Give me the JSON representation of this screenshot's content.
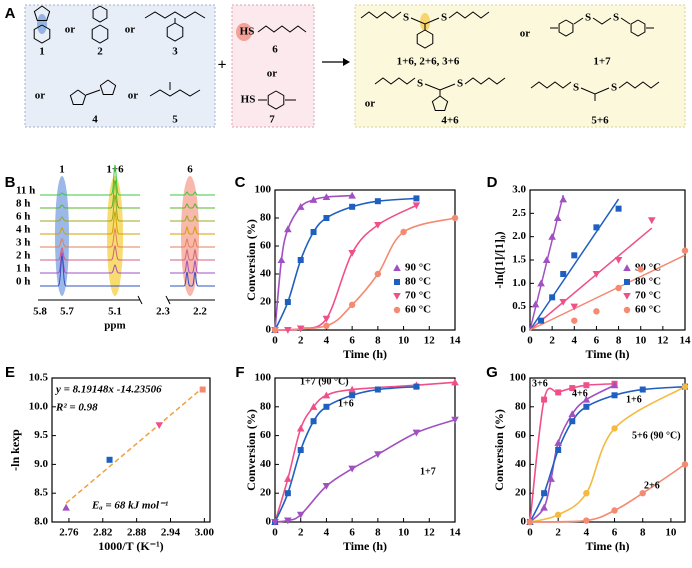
{
  "panel_labels": [
    "A",
    "B",
    "C",
    "D",
    "E",
    "F",
    "G"
  ],
  "scheme": {
    "compounds": [
      "1",
      "2",
      "3",
      "4",
      "5",
      "6",
      "7"
    ],
    "products": [
      "1+6, 2+6, 3+6",
      "1+7",
      "4+6",
      "5+6"
    ],
    "or": "or",
    "plus": "+",
    "thiol_group": "HS",
    "sulfur": "S"
  },
  "nmr": {
    "peak_labels": [
      "1",
      "1+6",
      "6"
    ],
    "time_labels": [
      "11 h",
      "8 h",
      "6 h",
      "4 h",
      "3 h",
      "2 h",
      "1 h",
      "0 h"
    ],
    "colors": [
      "#3cc83c",
      "#5ab428",
      "#9aa81e",
      "#d2a000",
      "#e0805a",
      "#d0607e",
      "#a050c0",
      "#3050c0"
    ],
    "xtick_labels": [
      "5.8",
      "5.7",
      "5.1",
      "2.3",
      "2.2"
    ],
    "xlabel": "ppm"
  },
  "chart_data": [
    {
      "type": "scatter",
      "line": "connect",
      "legend": "lower right",
      "xlabel": "Time (h)",
      "ylabel": "Conversion (%)",
      "xlim": [
        0,
        14
      ],
      "xticks": [
        0,
        2,
        4,
        6,
        8,
        10,
        12,
        14
      ],
      "ylim": [
        0,
        100
      ],
      "yticks": [
        0,
        20,
        40,
        60,
        80,
        100
      ],
      "series": [
        {
          "name": "90 °C",
          "color": "#a050c0",
          "marker": "triangle-up",
          "x": [
            0,
            0.5,
            1,
            2,
            3,
            4,
            6
          ],
          "values": [
            0,
            50,
            72,
            88,
            93,
            95,
            96
          ]
        },
        {
          "name": "80 °C",
          "color": "#1f5fbf",
          "marker": "square",
          "x": [
            0,
            1,
            2,
            3,
            4,
            6,
            8,
            11
          ],
          "values": [
            0,
            20,
            50,
            70,
            80,
            88,
            92,
            94
          ]
        },
        {
          "name": "70 °C",
          "color": "#f0508a",
          "marker": "triangle-down",
          "x": [
            0,
            1,
            2,
            4,
            6,
            8,
            11
          ],
          "values": [
            0,
            0,
            1,
            8,
            55,
            75,
            89
          ]
        },
        {
          "name": "60 °C",
          "color": "#f48a70",
          "marker": "circle",
          "x": [
            0,
            4,
            6,
            8,
            10,
            14
          ],
          "values": [
            0,
            3,
            18,
            40,
            70,
            80
          ]
        }
      ]
    },
    {
      "type": "scatter",
      "line": "origin-fit",
      "legend": "lower right",
      "xlabel": "Time (h)",
      "ylabel": "-ln([1]/[1]₀)",
      "xlim": [
        0,
        14
      ],
      "xticks": [
        0,
        2,
        4,
        6,
        8,
        10,
        12,
        14
      ],
      "ylim": [
        0,
        3
      ],
      "yticks": [
        0,
        0.5,
        {
          "value": 1,
          "label": "1.0"
        },
        1.5,
        {
          "value": 2,
          "label": "2.0"
        },
        2.5,
        {
          "value": 3,
          "label": "3.0"
        }
      ],
      "series": [
        {
          "name": "90 °C",
          "color": "#a050c0",
          "marker": "triangle-up",
          "x": [
            0.5,
            1,
            1.5,
            2,
            2.5,
            3
          ],
          "values": [
            0.55,
            1.0,
            1.5,
            2.0,
            2.4,
            2.8
          ]
        },
        {
          "name": "80 °C",
          "color": "#1f5fbf",
          "marker": "square",
          "x": [
            1,
            2,
            3,
            4,
            6,
            8
          ],
          "values": [
            0.2,
            0.7,
            1.2,
            1.6,
            2.2,
            2.6
          ]
        },
        {
          "name": "70 °C",
          "color": "#f0508a",
          "marker": "triangle-down",
          "x": [
            3,
            4,
            6,
            8,
            11
          ],
          "values": [
            0.6,
            0.5,
            1.2,
            1.5,
            2.35
          ]
        },
        {
          "name": "60 °C",
          "color": "#f48a70",
          "marker": "circle",
          "x": [
            4,
            6,
            8,
            10,
            14
          ],
          "values": [
            0.2,
            0.4,
            0.9,
            1.3,
            1.7
          ]
        }
      ]
    },
    {
      "type": "scatter",
      "line": "fit",
      "fit_color": "#f0a040",
      "xlabel": "1000/T (K⁻¹)",
      "ylabel": "-ln kexp",
      "xlim": [
        2.73,
        3.01
      ],
      "xticks": [
        2.76,
        2.82,
        2.88,
        2.94,
        {
          "value": 3,
          "label": "3.00"
        }
      ],
      "ylim": [
        8,
        10.5
      ],
      "yticks": [
        {
          "value": 8,
          "label": "8.0"
        },
        8.5,
        {
          "value": 9,
          "label": "9.0"
        },
        9.5,
        {
          "value": 10,
          "label": "10.0"
        },
        10.5
      ],
      "annotations": [
        "y = 8.19148x -14.23506",
        "R² = 0.98",
        "Eₐ = 68 kJ mol⁻¹"
      ],
      "series": [
        {
          "colors": [
            "#a050c0",
            "#1f5fbf",
            "#f0508a",
            "#f48a70"
          ],
          "markers": [
            "triangle-up",
            "square",
            "triangle-down",
            "square"
          ],
          "x": [
            2.755,
            2.832,
            2.92,
            2.997
          ],
          "values": [
            8.25,
            9.08,
            9.68,
            10.3
          ]
        }
      ]
    },
    {
      "type": "scatter",
      "line": "connect",
      "legend": "inline",
      "xlabel": "Time (h)",
      "ylabel": "Conversion (%)",
      "xlim": [
        0,
        14
      ],
      "xticks": [
        0,
        2,
        4,
        6,
        8,
        10,
        12,
        14
      ],
      "ylim": [
        0,
        100
      ],
      "yticks": [
        0,
        20,
        40,
        60,
        80,
        100
      ],
      "series": [
        {
          "name": "1+7 (90 °C)",
          "color": "#f0508a",
          "marker": "triangle-up",
          "x": [
            0,
            1,
            2,
            3,
            4,
            6,
            11,
            14
          ],
          "values": [
            0,
            30,
            65,
            80,
            88,
            92,
            95,
            97
          ]
        },
        {
          "name": "1+6",
          "color": "#1f5fbf",
          "marker": "square",
          "x": [
            0,
            1,
            2,
            3,
            4,
            6,
            8,
            11
          ],
          "values": [
            0,
            20,
            50,
            70,
            80,
            88,
            92,
            94
          ]
        },
        {
          "name": "1+7",
          "color": "#a050c0",
          "marker": "triangle-down",
          "x": [
            0,
            1,
            2,
            4,
            6,
            8,
            11,
            14
          ],
          "values": [
            0,
            1,
            5,
            25,
            37,
            47,
            62,
            71
          ]
        }
      ]
    },
    {
      "type": "scatter",
      "line": "connect",
      "legend": "inline",
      "xlabel": "Time (h)",
      "ylabel": "Conversion (%)",
      "xlim": [
        0,
        11
      ],
      "xticks": [
        0,
        2,
        4,
        6,
        8,
        10
      ],
      "ylim": [
        0,
        100
      ],
      "yticks": [
        0,
        20,
        40,
        60,
        80,
        100
      ],
      "series": [
        {
          "name": "3+6",
          "color": "#f0508a",
          "marker": "square",
          "x": [
            0,
            1,
            2,
            3,
            4,
            6
          ],
          "values": [
            0,
            85,
            90,
            93,
            95,
            96
          ]
        },
        {
          "name": "4+6",
          "color": "#a050c0",
          "marker": "triangle-up",
          "x": [
            0,
            1,
            1.5,
            2,
            3,
            4,
            6
          ],
          "values": [
            0,
            10,
            30,
            55,
            75,
            85,
            95
          ]
        },
        {
          "name": "1+6",
          "color": "#1f5fbf",
          "marker": "square",
          "x": [
            0,
            1,
            2,
            3,
            4,
            6,
            8,
            11
          ],
          "values": [
            0,
            20,
            50,
            70,
            80,
            88,
            92,
            94
          ]
        },
        {
          "name": "5+6 (90 °C)",
          "color": "#f5b940",
          "marker": "circle",
          "x": [
            0,
            2,
            4,
            6,
            11
          ],
          "values": [
            0,
            5,
            20,
            65,
            94
          ]
        },
        {
          "name": "2+6",
          "color": "#f48a70",
          "marker": "circle",
          "x": [
            0,
            4,
            6,
            8,
            11
          ],
          "values": [
            0,
            1,
            8,
            20,
            40
          ]
        }
      ]
    }
  ]
}
